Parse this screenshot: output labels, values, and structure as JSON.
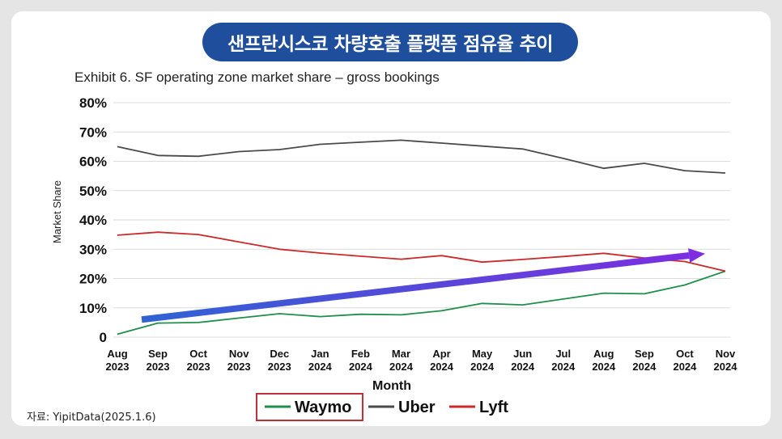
{
  "header": {
    "title": "샌프란시스코 차량호출 플랫폼 점유율 추이",
    "subtitle": "Exhibit 6. SF operating zone market share – gross bookings"
  },
  "footer": {
    "source": "자료: YipitData(2025.1.6)"
  },
  "colors": {
    "title_bg": "#1f4e9c",
    "waymo": "#1e8f4a",
    "uber": "#4a4a4a",
    "lyft": "#cc2a2a",
    "highlight_box": "#c0303a",
    "arrow_start": "#2f63d4",
    "arrow_end": "#7c2ee0"
  },
  "chart_data": {
    "type": "line",
    "title": "Exhibit 6. SF operating zone market share – gross bookings",
    "xlabel": "Month",
    "ylabel": "Market Share",
    "ylim": [
      0,
      80
    ],
    "yticks": [
      "0",
      "10%",
      "20%",
      "30%",
      "40%",
      "50%",
      "60%",
      "70%",
      "80%"
    ],
    "grid": true,
    "legend_position": "bottom",
    "categories": [
      [
        "Aug",
        "2023"
      ],
      [
        "Sep",
        "2023"
      ],
      [
        "Oct",
        "2023"
      ],
      [
        "Nov",
        "2023"
      ],
      [
        "Dec",
        "2023"
      ],
      [
        "Jan",
        "2024"
      ],
      [
        "Feb",
        "2024"
      ],
      [
        "Mar",
        "2024"
      ],
      [
        "Apr",
        "2024"
      ],
      [
        "May",
        "2024"
      ],
      [
        "Jun",
        "2024"
      ],
      [
        "Jul",
        "2024"
      ],
      [
        "Aug",
        "2024"
      ],
      [
        "Sep",
        "2024"
      ],
      [
        "Oct",
        "2024"
      ],
      [
        "Nov",
        "2024"
      ]
    ],
    "series": [
      {
        "name": "Waymo",
        "color": "#1e8f4a",
        "values": [
          1,
          4.8,
          5,
          6.5,
          8,
          7,
          7.8,
          7.6,
          9,
          11.5,
          11,
          13,
          15,
          14.8,
          17.8,
          22.5
        ]
      },
      {
        "name": "Uber",
        "color": "#4a4a4a",
        "values": [
          65,
          62,
          61.7,
          63.3,
          64,
          65.8,
          66.5,
          67.2,
          66.2,
          65.2,
          64.2,
          61,
          57.6,
          59.3,
          56.8,
          56
        ]
      },
      {
        "name": "Lyft",
        "color": "#cc2a2a",
        "values": [
          34.8,
          35.8,
          35,
          32.5,
          30,
          28.7,
          27.6,
          26.6,
          27.8,
          25.6,
          26.5,
          27.5,
          28.6,
          27,
          25.8,
          22.5
        ]
      }
    ],
    "annotation": {
      "type": "trend-arrow",
      "from": [
        0.6,
        6
      ],
      "to": [
        14.5,
        28.5
      ]
    }
  }
}
